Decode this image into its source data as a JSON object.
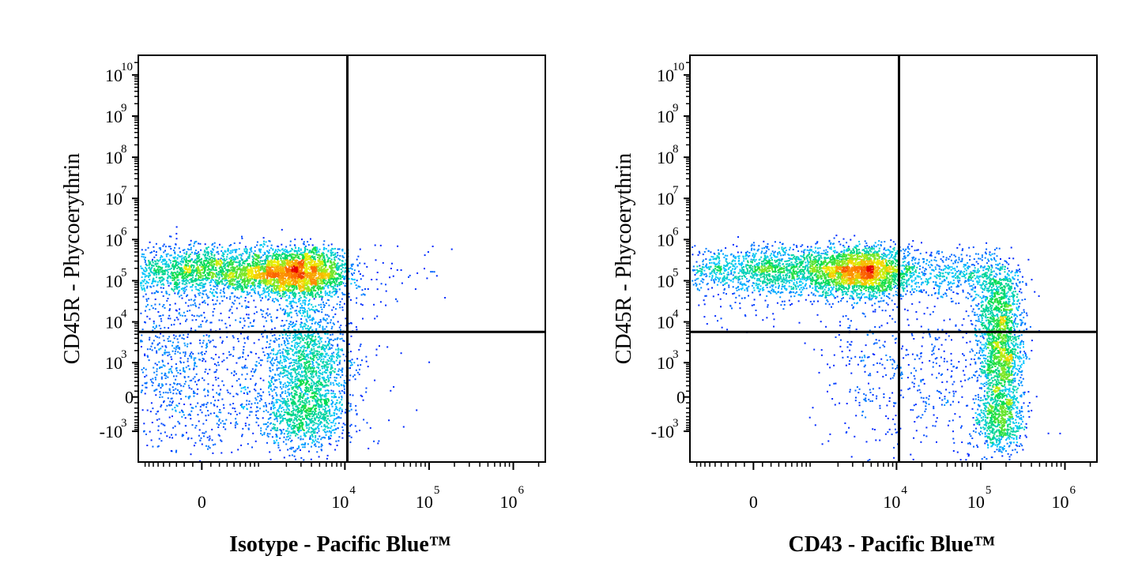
{
  "chart_data": [
    {
      "type": "density-scatter",
      "xlabel": "Isotype - Pacific Blue™",
      "ylabel": "CD45R - Phycoerythrin",
      "xscale": "biexponential",
      "yscale": "biexponential",
      "xlim": [
        -1100,
        2400000
      ],
      "ylim": [
        -5700,
        30000000000
      ],
      "xticks": [
        {
          "value": 0,
          "label": "0"
        },
        {
          "value": 10000,
          "label": "10",
          "exponent": "4"
        },
        {
          "value": 100000,
          "label": "10",
          "exponent": "5"
        },
        {
          "value": 1000000,
          "label": "10",
          "exponent": "6"
        }
      ],
      "yticks": [
        {
          "value": 10000000000,
          "label": "10",
          "exponent": "10"
        },
        {
          "value": 1000000000,
          "label": "10",
          "exponent": "9"
        },
        {
          "value": 100000000,
          "label": "10",
          "exponent": "8"
        },
        {
          "value": 10000000,
          "label": "10",
          "exponent": "7"
        },
        {
          "value": 1000000,
          "label": "10",
          "exponent": "6"
        },
        {
          "value": 100000,
          "label": "10",
          "exponent": "5"
        },
        {
          "value": 10000,
          "label": "10",
          "exponent": "4"
        },
        {
          "value": 1000,
          "label": "10",
          "exponent": "3"
        },
        {
          "value": 0,
          "label": "0"
        },
        {
          "value": -1000,
          "label": "-10",
          "exponent": "3"
        }
      ],
      "gate_x": 10700,
      "gate_y": 5700
    },
    {
      "type": "density-scatter",
      "xlabel": "CD43 - Pacific Blue™",
      "ylabel": "CD45R - Phycoerythrin",
      "xscale": "biexponential",
      "yscale": "biexponential",
      "xlim": [
        -1100,
        2400000
      ],
      "ylim": [
        -5700,
        30000000000
      ],
      "xticks": [
        {
          "value": 0,
          "label": "0"
        },
        {
          "value": 10000,
          "label": "10",
          "exponent": "4"
        },
        {
          "value": 100000,
          "label": "10",
          "exponent": "5"
        },
        {
          "value": 1000000,
          "label": "10",
          "exponent": "6"
        }
      ],
      "yticks": [
        {
          "value": 10000000000,
          "label": "10",
          "exponent": "10"
        },
        {
          "value": 1000000000,
          "label": "10",
          "exponent": "9"
        },
        {
          "value": 100000000,
          "label": "10",
          "exponent": "8"
        },
        {
          "value": 10000000,
          "label": "10",
          "exponent": "7"
        },
        {
          "value": 1000000,
          "label": "10",
          "exponent": "6"
        },
        {
          "value": 100000,
          "label": "10",
          "exponent": "5"
        },
        {
          "value": 10000,
          "label": "10",
          "exponent": "4"
        },
        {
          "value": 1000,
          "label": "10",
          "exponent": "3"
        },
        {
          "value": 0,
          "label": "0"
        },
        {
          "value": -1000,
          "label": "-10",
          "exponent": "3"
        }
      ],
      "gate_x": 10700,
      "gate_y": 5700
    }
  ]
}
